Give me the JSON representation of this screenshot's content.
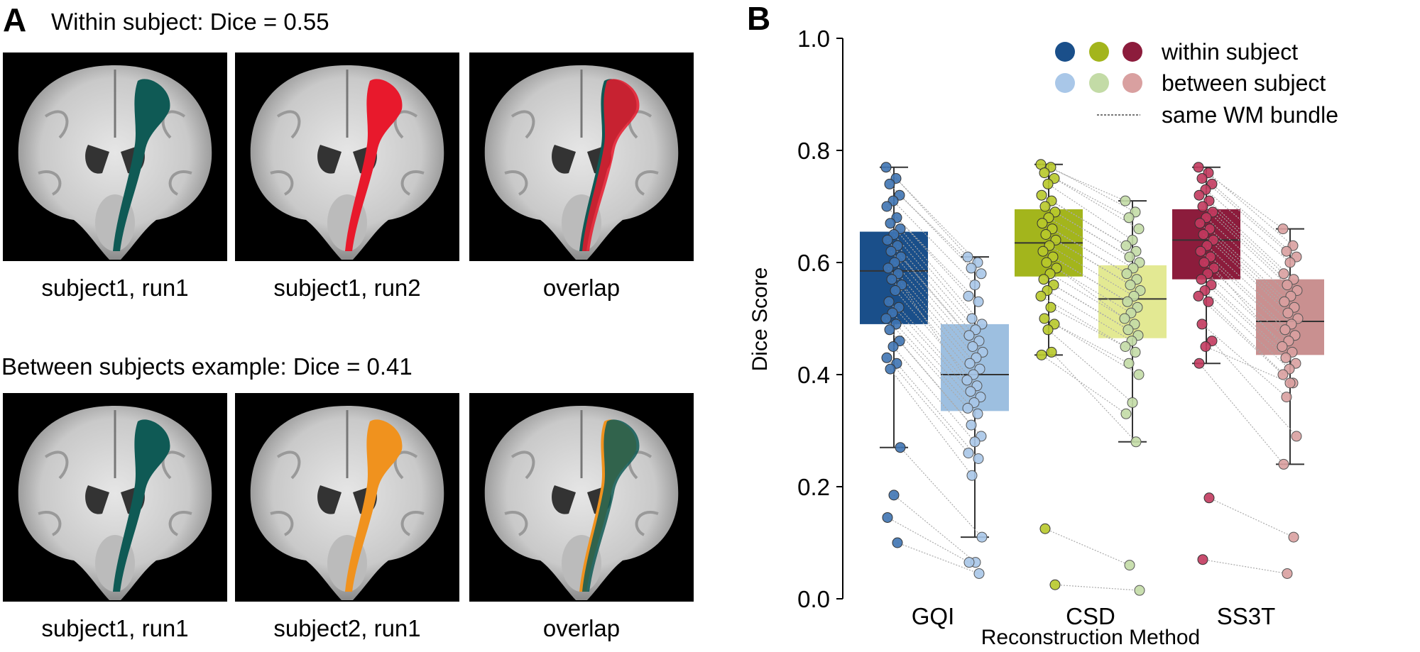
{
  "panel_a": {
    "label": "A",
    "row1_title": "Within subject: Dice = 0.55",
    "row2_title": "Between subjects example: Dice = 0.41",
    "row1": [
      {
        "caption": "subject1, run1",
        "tracts": [
          "#0f5a55"
        ]
      },
      {
        "caption": "subject1, run2",
        "tracts": [
          "#e8192c"
        ]
      },
      {
        "caption": "overlap",
        "tracts": [
          "#0f5a55",
          "#e8192c"
        ]
      }
    ],
    "row2": [
      {
        "caption": "subject1, run1",
        "tracts": [
          "#0f5a55"
        ]
      },
      {
        "caption": "subject2, run1",
        "tracts": [
          "#f0921e"
        ]
      },
      {
        "caption": "overlap",
        "tracts": [
          "#f0921e",
          "#0f5a55"
        ]
      }
    ]
  },
  "chart_data": {
    "type": "box",
    "panel_label": "B",
    "xlabel": "Reconstruction Method",
    "ylabel": "Dice Score",
    "ylim": [
      0,
      1
    ],
    "yticks": [
      "0.0",
      "0.2",
      "0.4",
      "0.6",
      "0.8",
      "1.0"
    ],
    "categories": [
      "GQI",
      "CSD",
      "SS3T"
    ],
    "legend": {
      "placement": "top-right",
      "within_label": "within subject",
      "between_label": "between subject",
      "line_label": "same WM bundle"
    },
    "groups": [
      {
        "method": "GQI",
        "within": {
          "color": "#1a4f8a",
          "point": "#3f74b3",
          "whisker": [
            0.27,
            0.77
          ],
          "q1": 0.49,
          "median": 0.585,
          "q3": 0.655
        },
        "between": {
          "color": "#9dbfe0",
          "point": "#a9c7e8",
          "whisker": [
            0.11,
            0.61
          ],
          "q1": 0.335,
          "median": 0.4,
          "q3": 0.49
        },
        "pairs": [
          [
            0.77,
            0.61
          ],
          [
            0.75,
            0.6
          ],
          [
            0.74,
            0.59
          ],
          [
            0.72,
            0.58
          ],
          [
            0.71,
            0.56
          ],
          [
            0.7,
            0.54
          ],
          [
            0.68,
            0.53
          ],
          [
            0.67,
            0.5
          ],
          [
            0.66,
            0.49
          ],
          [
            0.65,
            0.48
          ],
          [
            0.64,
            0.47
          ],
          [
            0.63,
            0.46
          ],
          [
            0.62,
            0.45
          ],
          [
            0.61,
            0.44
          ],
          [
            0.6,
            0.43
          ],
          [
            0.59,
            0.42
          ],
          [
            0.58,
            0.41
          ],
          [
            0.57,
            0.4
          ],
          [
            0.56,
            0.39
          ],
          [
            0.55,
            0.38
          ],
          [
            0.53,
            0.37
          ],
          [
            0.52,
            0.36
          ],
          [
            0.51,
            0.35
          ],
          [
            0.5,
            0.34
          ],
          [
            0.49,
            0.33
          ],
          [
            0.48,
            0.31
          ],
          [
            0.46,
            0.29
          ],
          [
            0.45,
            0.28
          ],
          [
            0.43,
            0.26
          ],
          [
            0.42,
            0.25
          ],
          [
            0.41,
            0.22
          ],
          [
            0.27,
            0.11
          ],
          [
            0.185,
            0.065
          ],
          [
            0.145,
            0.065
          ],
          [
            0.1,
            0.045
          ]
        ]
      },
      {
        "method": "CSD",
        "within": {
          "color": "#a3b51c",
          "point": "#b8c92a",
          "whisker": [
            0.435,
            0.775
          ],
          "q1": 0.575,
          "median": 0.635,
          "q3": 0.695
        },
        "between": {
          "color": "#e3e993",
          "point": "#c3dba6",
          "whisker": [
            0.28,
            0.71
          ],
          "q1": 0.465,
          "median": 0.535,
          "q3": 0.595
        },
        "pairs": [
          [
            0.775,
            0.71
          ],
          [
            0.77,
            0.69
          ],
          [
            0.76,
            0.68
          ],
          [
            0.75,
            0.66
          ],
          [
            0.74,
            0.64
          ],
          [
            0.72,
            0.63
          ],
          [
            0.71,
            0.62
          ],
          [
            0.7,
            0.61
          ],
          [
            0.69,
            0.6
          ],
          [
            0.68,
            0.59
          ],
          [
            0.67,
            0.58
          ],
          [
            0.66,
            0.57
          ],
          [
            0.65,
            0.56
          ],
          [
            0.64,
            0.55
          ],
          [
            0.63,
            0.54
          ],
          [
            0.62,
            0.53
          ],
          [
            0.61,
            0.52
          ],
          [
            0.6,
            0.51
          ],
          [
            0.59,
            0.5
          ],
          [
            0.58,
            0.49
          ],
          [
            0.57,
            0.48
          ],
          [
            0.56,
            0.47
          ],
          [
            0.55,
            0.46
          ],
          [
            0.54,
            0.45
          ],
          [
            0.52,
            0.44
          ],
          [
            0.5,
            0.42
          ],
          [
            0.49,
            0.4
          ],
          [
            0.48,
            0.35
          ],
          [
            0.435,
            0.33
          ],
          [
            0.44,
            0.28
          ],
          [
            0.125,
            0.06
          ],
          [
            0.025,
            0.015
          ]
        ]
      },
      {
        "method": "SS3T",
        "within": {
          "color": "#8c1c3c",
          "point": "#c23a5e",
          "whisker": [
            0.42,
            0.77
          ],
          "q1": 0.57,
          "median": 0.64,
          "q3": 0.695
        },
        "between": {
          "color": "#c99090",
          "point": "#d9a0a0",
          "whisker": [
            0.24,
            0.66
          ],
          "q1": 0.435,
          "median": 0.495,
          "q3": 0.57
        },
        "pairs": [
          [
            0.77,
            0.66
          ],
          [
            0.76,
            0.63
          ],
          [
            0.75,
            0.62
          ],
          [
            0.74,
            0.61
          ],
          [
            0.73,
            0.6
          ],
          [
            0.72,
            0.58
          ],
          [
            0.71,
            0.57
          ],
          [
            0.7,
            0.56
          ],
          [
            0.69,
            0.55
          ],
          [
            0.68,
            0.54
          ],
          [
            0.67,
            0.53
          ],
          [
            0.66,
            0.52
          ],
          [
            0.65,
            0.51
          ],
          [
            0.64,
            0.5
          ],
          [
            0.63,
            0.49
          ],
          [
            0.62,
            0.48
          ],
          [
            0.61,
            0.47
          ],
          [
            0.6,
            0.46
          ],
          [
            0.59,
            0.45
          ],
          [
            0.58,
            0.44
          ],
          [
            0.57,
            0.43
          ],
          [
            0.56,
            0.42
          ],
          [
            0.55,
            0.41
          ],
          [
            0.54,
            0.4
          ],
          [
            0.53,
            0.385
          ],
          [
            0.49,
            0.36
          ],
          [
            0.46,
            0.29
          ],
          [
            0.45,
            0.385
          ],
          [
            0.42,
            0.24
          ],
          [
            0.18,
            0.11
          ],
          [
            0.07,
            0.045
          ]
        ]
      }
    ]
  }
}
